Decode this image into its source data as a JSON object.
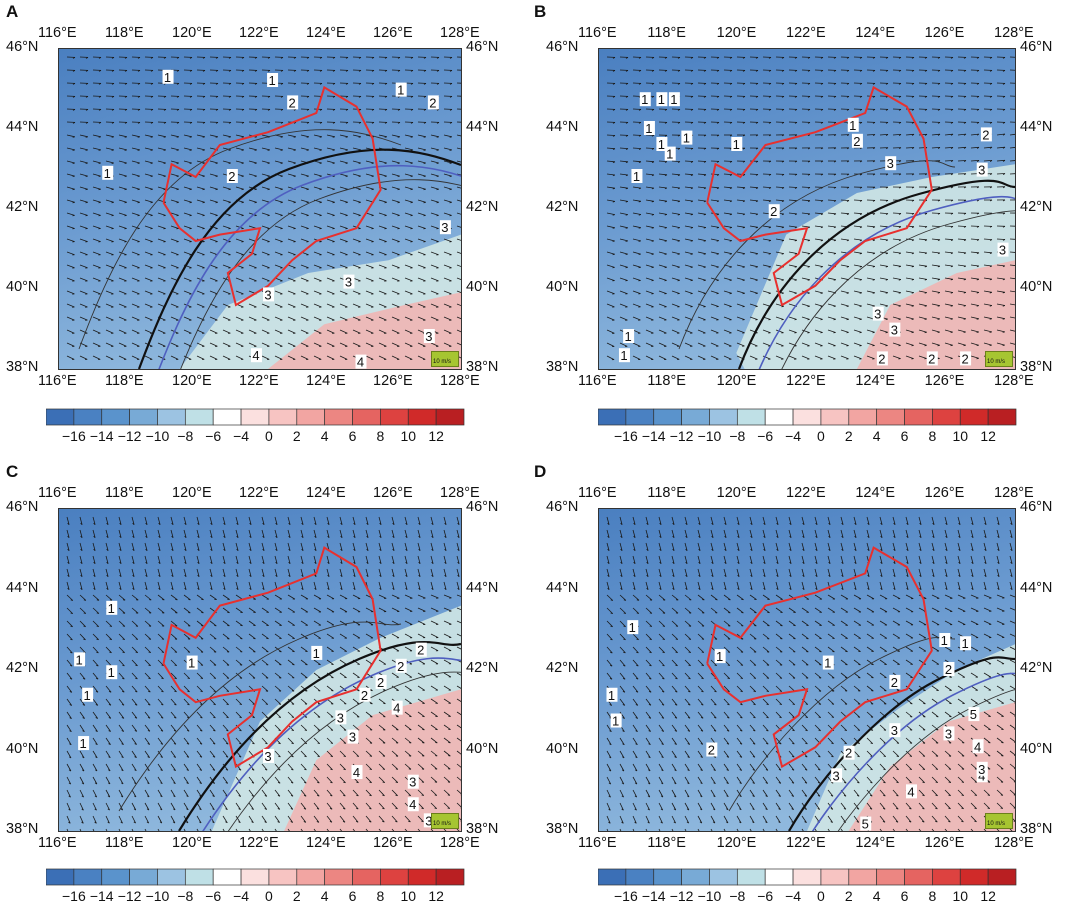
{
  "panels": [
    {
      "letter": "A"
    },
    {
      "letter": "B"
    },
    {
      "letter": "C"
    },
    {
      "letter": "D"
    }
  ],
  "lon_labels": [
    "116°E",
    "118°E",
    "120°E",
    "122°E",
    "124°E",
    "126°E",
    "128°E"
  ],
  "lat_labels": [
    "46°N",
    "44°N",
    "42°N",
    "40°N",
    "38°N"
  ],
  "colorbar": {
    "labels": [
      "−16",
      "−14",
      "−12",
      "−10",
      "−8",
      "−6",
      "−4",
      "0",
      "2",
      "4",
      "6",
      "8",
      "10",
      "12"
    ],
    "colors": [
      "#3b6fb6",
      "#4a81c2",
      "#5a93cc",
      "#78aad6",
      "#9cc3e2",
      "#bfe0e6",
      "#ffffff",
      "#fbe0df",
      "#f7c4c2",
      "#f2a5a2",
      "#ec8682",
      "#e56461",
      "#dd4240",
      "#d02a29",
      "#b91f22"
    ]
  },
  "contour_labels": {
    "A": [
      "1",
      "1",
      "1",
      "1",
      "2",
      "2",
      "2",
      "3",
      "3",
      "3",
      "3",
      "4",
      "4"
    ],
    "B": [
      "1",
      "1",
      "1",
      "1",
      "1",
      "1",
      "1",
      "1",
      "1",
      "1",
      "1",
      "1",
      "2",
      "2",
      "2",
      "3",
      "3",
      "3",
      "3",
      "3",
      "2",
      "2",
      "2"
    ],
    "C": [
      "1",
      "1",
      "1",
      "1",
      "1",
      "1",
      "1",
      "2",
      "2",
      "2",
      "2",
      "3",
      "3",
      "3",
      "4",
      "4",
      "4",
      "3",
      "3"
    ],
    "D": [
      "1",
      "1",
      "1",
      "1",
      "1",
      "1",
      "1",
      "2",
      "2",
      "2",
      "2",
      "3",
      "3",
      "3",
      "4",
      "4",
      "4",
      "5",
      "5",
      "3"
    ]
  },
  "legend": {
    "ref_label": "10 m/s"
  },
  "colors": {
    "border": "#e8302e",
    "contour": "#222222",
    "blue_contour": "#4f5fc0"
  }
}
